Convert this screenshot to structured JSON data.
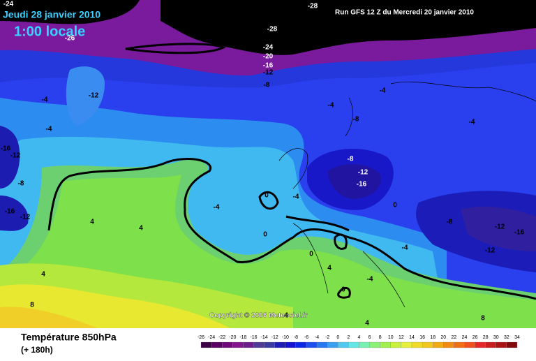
{
  "header": {
    "date": "Jeudi 28 janvier 2010",
    "time": "1:00 locale",
    "run": "Run GFS 12 Z du Mercredi 20 janvier 2010"
  },
  "copyright": "Copyright © 2008 Meteociel.fr",
  "footer": {
    "title": "Température 850hPa",
    "lead": "(+ 180h)"
  },
  "contour_labels": [
    -24,
    -28,
    -28,
    -26,
    -24,
    -20,
    -16,
    -12,
    -8,
    -12,
    -4,
    -4,
    -4,
    -8,
    -4,
    -4,
    -16,
    -12,
    -8,
    -12,
    -16,
    -8,
    0,
    -4,
    -4,
    -16,
    -12,
    0,
    4,
    4,
    -8,
    -12,
    -16,
    0,
    -4,
    -12,
    0,
    4,
    -4,
    4,
    0,
    8,
    4,
    4,
    8
  ],
  "colorbar": {
    "labels": [
      -26,
      -24,
      -22,
      -20,
      -18,
      -16,
      -14,
      -12,
      -10,
      -8,
      -6,
      -4,
      -2,
      0,
      2,
      4,
      6,
      8,
      10,
      12,
      14,
      16,
      18,
      20,
      22,
      24,
      26,
      28,
      30,
      32,
      34
    ],
    "colors": [
      "#3c0046",
      "#5a0064",
      "#6e0a78",
      "#82148c",
      "#6e1e8c",
      "#503c96",
      "#3c3ca0",
      "#1e1eb4",
      "#1414d2",
      "#0a28e6",
      "#1e50f0",
      "#2878f0",
      "#3ca0f0",
      "#50c8f0",
      "#64e6e6",
      "#78f0b4",
      "#8cf078",
      "#a0f050",
      "#c8f03c",
      "#e6f03c",
      "#f0dc28",
      "#f0c81e",
      "#f0aa14",
      "#f08c14",
      "#f06e14",
      "#f0501e",
      "#e62828",
      "#c81e1e",
      "#aa1414",
      "#820a0a"
    ]
  }
}
